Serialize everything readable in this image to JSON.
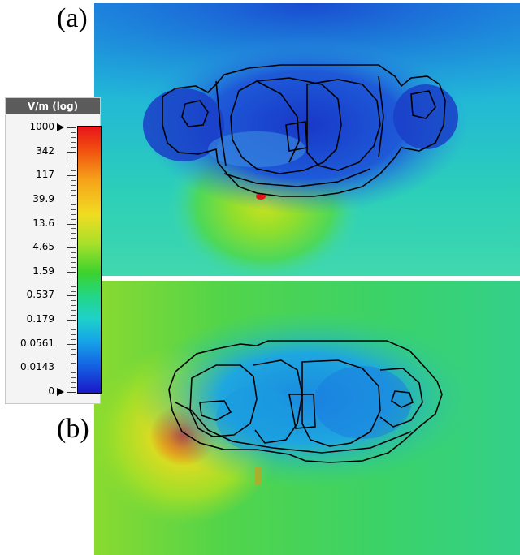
{
  "panels": {
    "a_label": "(a)",
    "b_label": "(b)"
  },
  "colorbar": {
    "title": "V/m (log)",
    "ticks": [
      "1000",
      "342",
      "117",
      "39.9",
      "13.6",
      "4.65",
      "1.59",
      "0.537",
      "0.179",
      "0.0561",
      "0.0143",
      "0"
    ],
    "colors": [
      "#e8141c",
      "#f6a21a",
      "#f0dc22",
      "#3bd22e",
      "#1ed2c8",
      "#16a8e6",
      "#1a18c8"
    ]
  }
}
